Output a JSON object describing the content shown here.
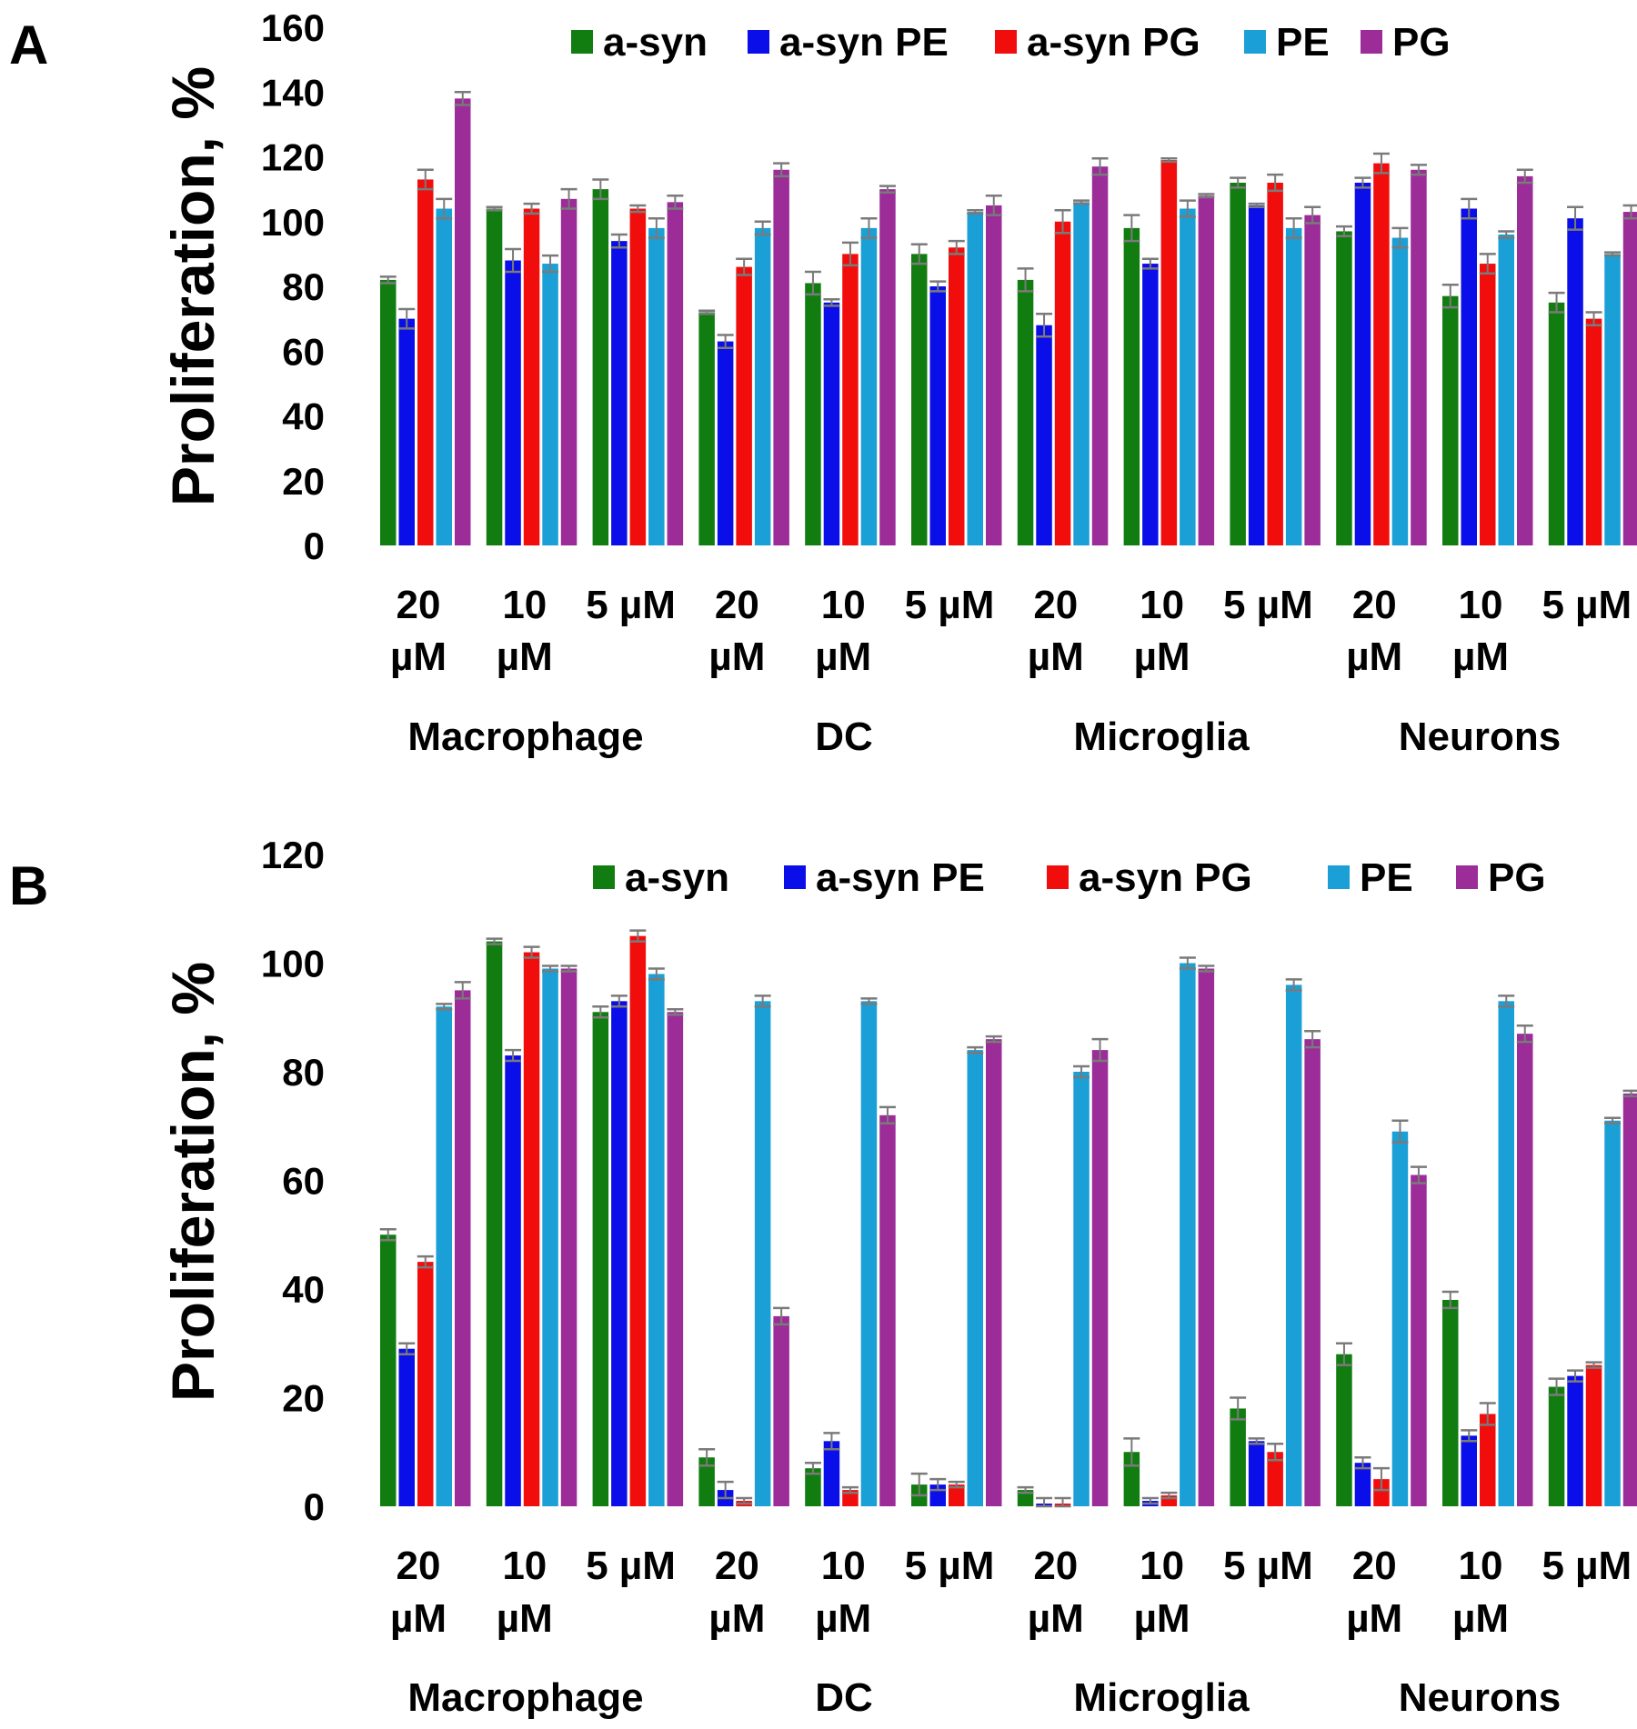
{
  "colors": {
    "a-syn": "#117d11",
    "a-syn PE": "#0a0ee8",
    "a-syn PG": "#f20d0d",
    "PE": "#1a9fd6",
    "PG": "#9b2c98",
    "error": "#7a7a7a"
  },
  "chart_data": [
    {
      "type": "bar",
      "panel_label": "A",
      "ylabel": "Proliferation, %",
      "ylim": [
        0,
        160
      ],
      "yticks": [
        0,
        20,
        40,
        60,
        80,
        100,
        120,
        140,
        160
      ],
      "legend": [
        "a-syn",
        "a-syn PE",
        "a-syn PG",
        "PE",
        "PG"
      ],
      "legend_position": "top",
      "categories": [
        {
          "line1": "20",
          "line2": "µM"
        },
        {
          "line1": "10",
          "line2": "µM"
        },
        {
          "line1": "5 µM",
          "line2": ""
        },
        {
          "line1": "20",
          "line2": "µM"
        },
        {
          "line1": "10",
          "line2": "µM"
        },
        {
          "line1": "5 µM",
          "line2": ""
        },
        {
          "line1": "20",
          "line2": "µM"
        },
        {
          "line1": "10",
          "line2": "µM"
        },
        {
          "line1": "5 µM",
          "line2": ""
        },
        {
          "line1": "20",
          "line2": "µM"
        },
        {
          "line1": "10",
          "line2": "µM"
        },
        {
          "line1": "5 µM",
          "line2": ""
        }
      ],
      "groups": [
        "Macrophage",
        "DC",
        "Microglia",
        "Neurons"
      ],
      "series": [
        {
          "name": "a-syn",
          "values": [
            82,
            104,
            110,
            72,
            81,
            90,
            82,
            98,
            112,
            97,
            77,
            75
          ],
          "errors": [
            1,
            0.5,
            3,
            0.5,
            3.5,
            3,
            3.5,
            4,
            1.5,
            1.5,
            3.5,
            3
          ]
        },
        {
          "name": "a-syn PE",
          "values": [
            70,
            88,
            94,
            63,
            75,
            80,
            68,
            87,
            105,
            112,
            104,
            101
          ],
          "errors": [
            3,
            3.5,
            2,
            2,
            1,
            1.5,
            3.5,
            1.5,
            0.5,
            1.5,
            3,
            3.5
          ]
        },
        {
          "name": "a-syn PG",
          "values": [
            113,
            104,
            104,
            86,
            90,
            92,
            100,
            119,
            112,
            118,
            87,
            70
          ],
          "errors": [
            3,
            1.5,
            1,
            2.5,
            3.5,
            2,
            3.5,
            0.5,
            2.5,
            3,
            3,
            2
          ]
        },
        {
          "name": "PE",
          "values": [
            104,
            87,
            98,
            98,
            98,
            103,
            106,
            104,
            98,
            95,
            96,
            90
          ],
          "errors": [
            3,
            2.5,
            3,
            2,
            3,
            0.5,
            0.5,
            2.5,
            3,
            3,
            1,
            0.5
          ]
        },
        {
          "name": "PG",
          "values": [
            138,
            107,
            106,
            116,
            110,
            105,
            117,
            108,
            102,
            116,
            114,
            103
          ],
          "errors": [
            2,
            3,
            2,
            2,
            1,
            3,
            2.5,
            0.5,
            2.5,
            1.5,
            2,
            2
          ]
        }
      ]
    },
    {
      "type": "bar",
      "panel_label": "B",
      "ylabel": "Proliferation, %",
      "ylim": [
        0,
        120
      ],
      "yticks": [
        0,
        20,
        40,
        60,
        80,
        100,
        120
      ],
      "legend": [
        "a-syn",
        "a-syn PE",
        "a-syn PG",
        "PE",
        "PG"
      ],
      "legend_position": "top-right",
      "categories": [
        {
          "line1": "20",
          "line2": "µM"
        },
        {
          "line1": "10",
          "line2": "µM"
        },
        {
          "line1": "5 µM",
          "line2": ""
        },
        {
          "line1": "20",
          "line2": "µM"
        },
        {
          "line1": "10",
          "line2": "µM"
        },
        {
          "line1": "5 µM",
          "line2": ""
        },
        {
          "line1": "20",
          "line2": "µM"
        },
        {
          "line1": "10",
          "line2": "µM"
        },
        {
          "line1": "5 µM",
          "line2": ""
        },
        {
          "line1": "20",
          "line2": "µM"
        },
        {
          "line1": "10",
          "line2": "µM"
        },
        {
          "line1": "5 µM",
          "line2": ""
        }
      ],
      "groups": [
        "Macrophage",
        "DC",
        "Microglia",
        "Neurons"
      ],
      "series": [
        {
          "name": "a-syn",
          "values": [
            50,
            104,
            91,
            9,
            7,
            4,
            3,
            10,
            18,
            28,
            38,
            22
          ],
          "errors": [
            1,
            0.5,
            1,
            1.5,
            1,
            2,
            0.5,
            2.5,
            2,
            2,
            1.5,
            1.5
          ]
        },
        {
          "name": "a-syn PE",
          "values": [
            29,
            83,
            93,
            3,
            12,
            4,
            0.5,
            1,
            12,
            8,
            13,
            24
          ],
          "errors": [
            1,
            1,
            1,
            1.5,
            1.5,
            1,
            1,
            0.5,
            0.5,
            1,
            1,
            1
          ]
        },
        {
          "name": "a-syn PG",
          "values": [
            45,
            102,
            105,
            1,
            3,
            4,
            0.5,
            2,
            10,
            5,
            17,
            26
          ],
          "errors": [
            1,
            1,
            1,
            0.5,
            0.5,
            0.5,
            1,
            0.5,
            1.5,
            2,
            2,
            0.5
          ]
        },
        {
          "name": "PE",
          "values": [
            92,
            99,
            98,
            93,
            93,
            84,
            80,
            100,
            96,
            69,
            93,
            71
          ],
          "errors": [
            0.5,
            0.5,
            1,
            1,
            0.5,
            0.5,
            1,
            1,
            1,
            2,
            1,
            0.5
          ]
        },
        {
          "name": "PG",
          "values": [
            95,
            99,
            91,
            35,
            72,
            86,
            84,
            99,
            86,
            61,
            87,
            76
          ],
          "errors": [
            1.5,
            0.5,
            0.5,
            1.5,
            1.5,
            0.5,
            2,
            0.5,
            1.5,
            1.5,
            1.5,
            0.5
          ]
        }
      ]
    }
  ]
}
